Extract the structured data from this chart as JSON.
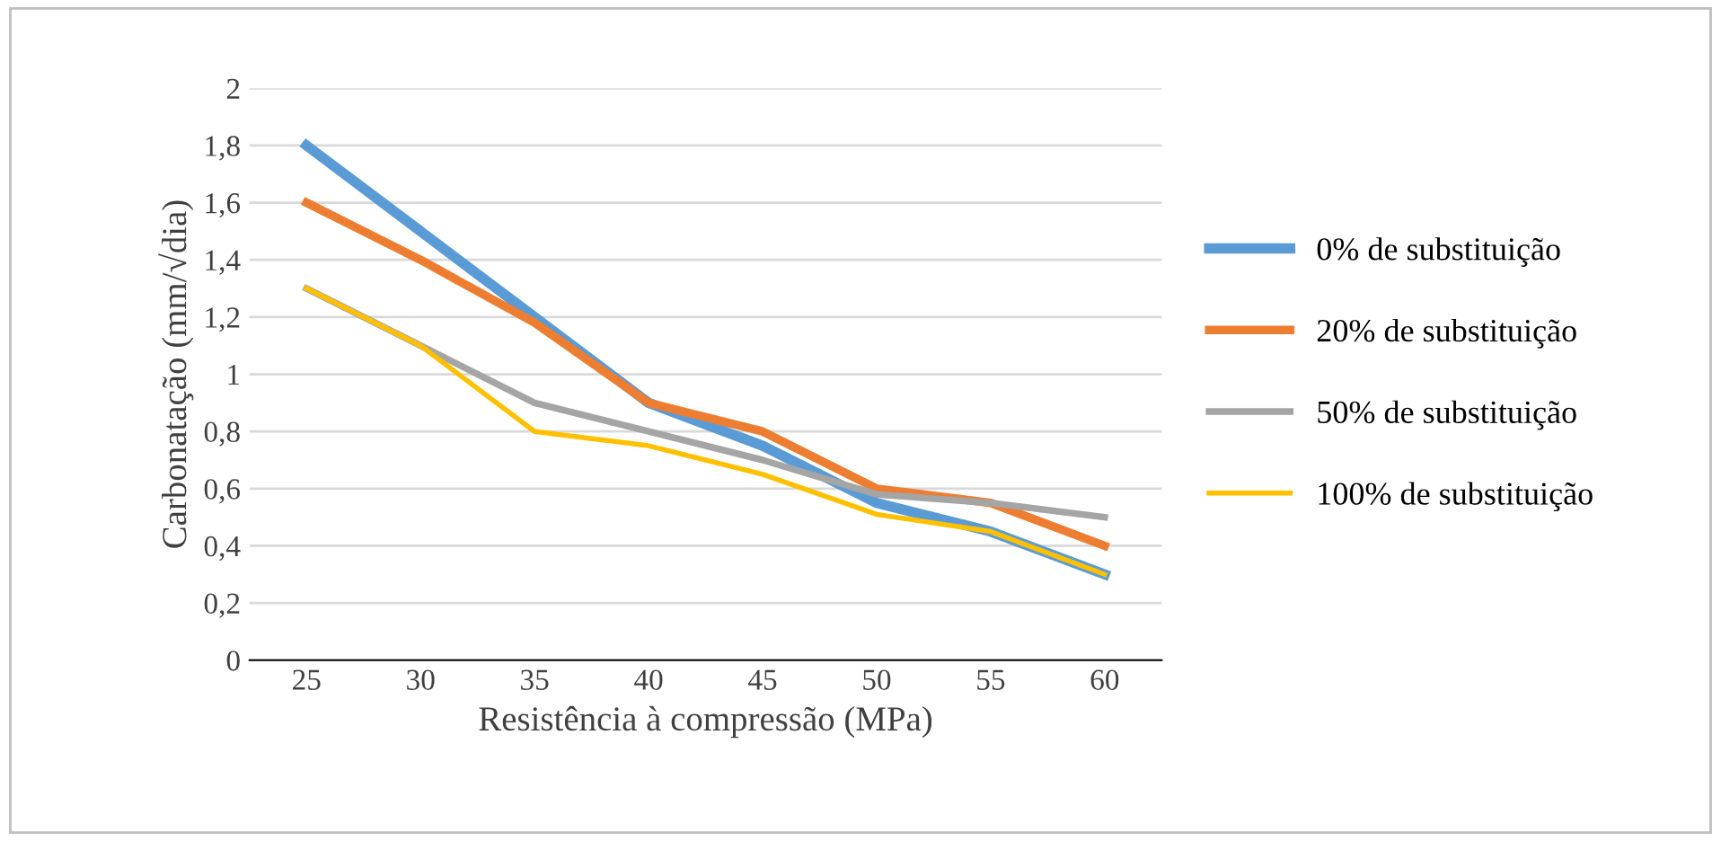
{
  "chart_data": {
    "type": "line",
    "xlabel": "Resistência à compressão (MPa)",
    "ylabel": "Carbonatação (mm/√dia)",
    "categories": [
      "25",
      "30",
      "35",
      "40",
      "45",
      "50",
      "55",
      "60"
    ],
    "series": [
      {
        "name": "0% de substituição",
        "color": "#5b9bd5",
        "values": [
          1.8,
          1.5,
          1.2,
          0.9,
          0.75,
          0.55,
          0.45,
          0.3
        ]
      },
      {
        "name": "20% de substituição",
        "color": "#ed7d31",
        "values": [
          1.6,
          1.4,
          1.18,
          0.9,
          0.8,
          0.6,
          0.55,
          0.4
        ]
      },
      {
        "name": "50% de substituição",
        "color": "#a5a5a5",
        "values": [
          1.3,
          1.1,
          0.9,
          0.8,
          0.7,
          0.58,
          0.55,
          0.5
        ]
      },
      {
        "name": "100% de substituição",
        "color": "#ffc000",
        "values": [
          1.3,
          1.1,
          0.8,
          0.75,
          0.65,
          0.51,
          0.45,
          0.3
        ]
      }
    ],
    "ylim": [
      0,
      2
    ],
    "yticks": [
      0,
      {
        "value": 0.2,
        "label": "0,2"
      },
      {
        "value": 0.4,
        "label": "0,4"
      },
      {
        "value": 0.6,
        "label": "0,6"
      },
      {
        "value": 0.8,
        "label": "0,8"
      },
      1,
      {
        "value": 1.2,
        "label": "1,2"
      },
      {
        "value": 1.4,
        "label": "1,4"
      },
      {
        "value": 1.6,
        "label": "1,6"
      },
      {
        "value": 1.8,
        "label": "1,8"
      },
      2
    ],
    "grid": "y",
    "legend": "right",
    "marker": "none",
    "line_style": "solid"
  }
}
